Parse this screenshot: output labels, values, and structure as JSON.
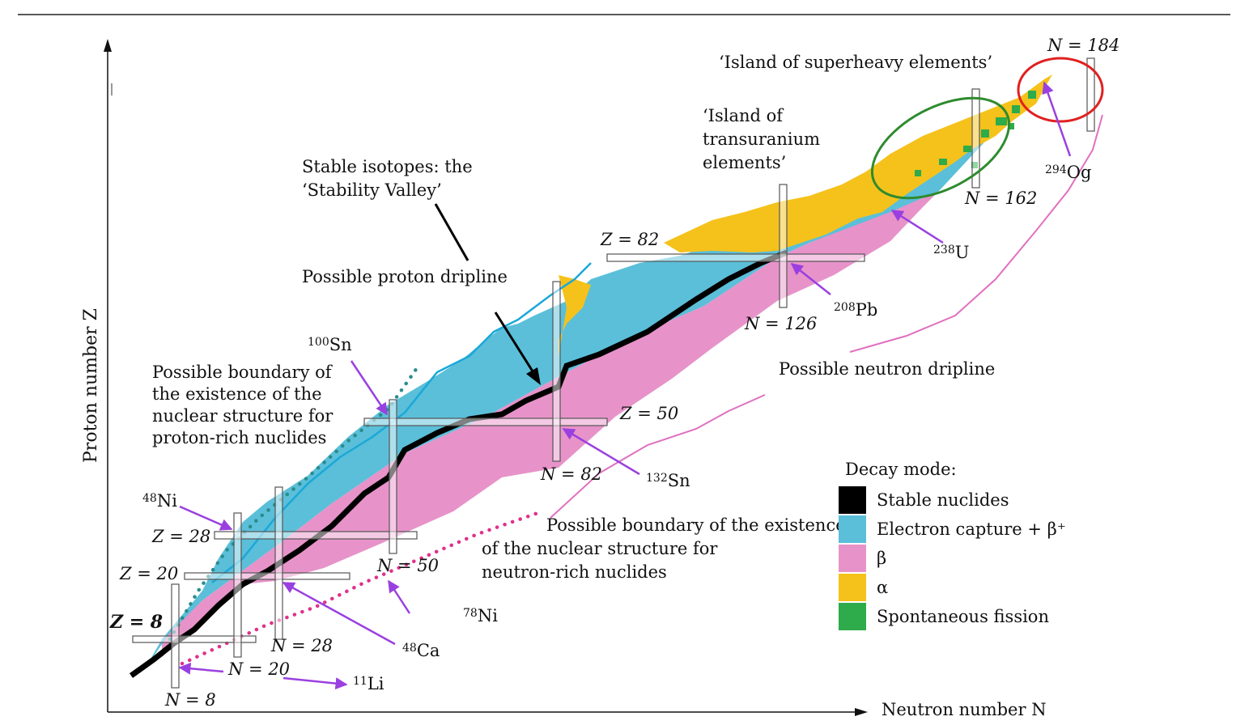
{
  "axes": {
    "x_label": "Neutron number N",
    "y_label": "Proton number Z"
  },
  "magic": {
    "z8": "Z = 8",
    "z20": "Z = 20",
    "z28": "Z = 28",
    "z50": "Z = 50",
    "z82": "Z = 82",
    "n8": "N = 8",
    "n20": "N = 20",
    "n28": "N = 28",
    "n50": "N = 50",
    "n82": "N = 82",
    "n126": "N = 126",
    "n162": "N = 162",
    "n184": "N = 184"
  },
  "isotopes": [
    {
      "id": "48Ni",
      "mass": "48",
      "sym": "Ni"
    },
    {
      "id": "100Sn",
      "mass": "100",
      "sym": "Sn"
    },
    {
      "id": "132Sn",
      "mass": "132",
      "sym": "Sn"
    },
    {
      "id": "208Pb",
      "mass": "208",
      "sym": "Pb"
    },
    {
      "id": "238U",
      "mass": "238",
      "sym": "U"
    },
    {
      "id": "294Og",
      "mass": "294",
      "sym": "Og"
    },
    {
      "id": "78Ni",
      "mass": "78",
      "sym": "Ni"
    },
    {
      "id": "48Ca",
      "mass": "48",
      "sym": "Ca"
    },
    {
      "id": "11Li",
      "mass": "11",
      "sym": "Li"
    }
  ],
  "annotations": {
    "superheavy": "‘Island of superheavy elements’",
    "transuranium": "‘Island of transuranium elements’",
    "stable": "Stable isotopes: the ‘Stability Valley’",
    "proton_dripline": "Possible proton dripline",
    "neutron_dripline": "Possible neutron dripline",
    "proton_rich": "Possible boundary of the existence of the nuclear structure for proton-rich nuclides",
    "neutron_rich_1": "Possible boundary of the existence",
    "neutron_rich_2": "of the nuclear structure for",
    "neutron_rich_3": "neutron-rich nuclides"
  },
  "legend": {
    "title": "Decay mode:",
    "items": [
      {
        "label": "Stable nuclides",
        "color": "#000000"
      },
      {
        "label": "Electron capture + β⁺",
        "color": "#5bbfd9"
      },
      {
        "label": "β",
        "color": "#e793c9"
      },
      {
        "label": "α",
        "color": "#f5c21b"
      },
      {
        "label": "Spontaneous fission",
        "color": "#2eab4b"
      }
    ]
  },
  "colors": {
    "ec": "#5bbfd9",
    "beta": "#e793c9",
    "alpha": "#f5c21b",
    "fission": "#2eab4b",
    "stable": "#000000",
    "dripline_proton": "#1aa8d8",
    "dripline_neutron": "#e070c0",
    "dots_proton": "#2a8c8c",
    "dots_neutron": "#e0308c",
    "arrow": "#9a40e0",
    "ellipse_green": "#2e8b2e",
    "ellipse_red": "#e02020"
  }
}
